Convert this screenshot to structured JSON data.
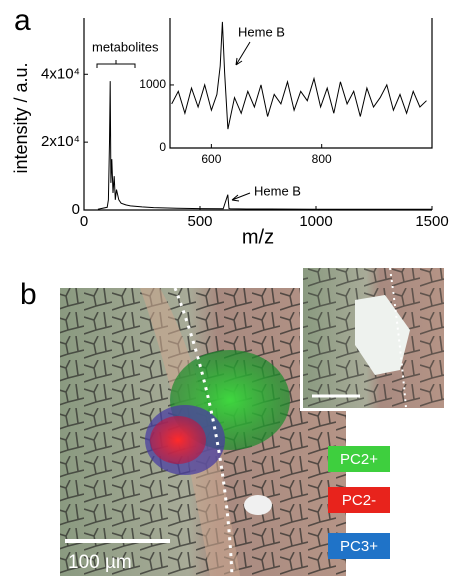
{
  "panel_labels": [
    "a",
    "b"
  ],
  "chart_data": [
    {
      "type": "line",
      "xlabel": "m/z",
      "ylabel": "intensity / a.u.",
      "xlim": [
        0,
        1500
      ],
      "xticks": [
        0,
        500,
        1000,
        1500
      ],
      "ylim": [
        0,
        56000
      ],
      "yticks": [
        0,
        {
          "value": 20000,
          "label": "2x10⁴"
        },
        {
          "value": 40000,
          "label": "4x10⁴"
        }
      ],
      "annotations": [
        "metabolites",
        "Heme B"
      ],
      "series": [
        {
          "color": "#000000",
          "x": [
            60,
            100,
            105,
            110,
            113,
            116,
            120,
            125,
            130,
            135,
            140,
            150,
            160,
            180,
            200,
            250,
            300,
            400,
            500,
            600,
            620,
            625,
            630,
            700,
            800,
            1000,
            1200,
            1500
          ],
          "values": [
            200,
            800,
            3000,
            20000,
            38000,
            8000,
            15000,
            5000,
            10000,
            3000,
            6000,
            3000,
            2000,
            1500,
            1200,
            900,
            700,
            500,
            400,
            350,
            4500,
            400,
            350,
            300,
            300,
            250,
            250,
            200
          ]
        }
      ]
    },
    {
      "type": "line",
      "xlim": [
        525,
        1000
      ],
      "xticks": [
        600,
        800
      ],
      "ylim": [
        0,
        2030
      ],
      "yticks": [
        0,
        1000
      ],
      "annotations": [
        "Heme B"
      ],
      "series": [
        {
          "color": "#000000",
          "x": [
            528,
            540,
            552,
            564,
            576,
            588,
            600,
            610,
            616,
            620,
            624,
            630,
            642,
            654,
            666,
            678,
            690,
            702,
            714,
            726,
            738,
            750,
            762,
            774,
            786,
            798,
            810,
            822,
            834,
            846,
            858,
            870,
            882,
            894,
            906,
            918,
            930,
            942,
            954,
            966,
            978,
            990
          ],
          "values": [
            700,
            900,
            550,
            950,
            650,
            1000,
            600,
            850,
            1300,
            2000,
            1200,
            300,
            800,
            550,
            900,
            650,
            1000,
            500,
            850,
            700,
            1050,
            600,
            900,
            750,
            1100,
            650,
            950,
            550,
            1050,
            700,
            900,
            500,
            950,
            650,
            800,
            1000,
            600,
            850,
            550,
            900,
            650,
            750
          ]
        }
      ]
    }
  ],
  "image": {
    "scale_bar": "100 µm",
    "legend": [
      {
        "label": "PC2+",
        "color": "#3ecf3e"
      },
      {
        "label": "PC2-",
        "color": "#e8231c"
      },
      {
        "label": "PC3+",
        "color": "#1f73c8"
      }
    ]
  }
}
